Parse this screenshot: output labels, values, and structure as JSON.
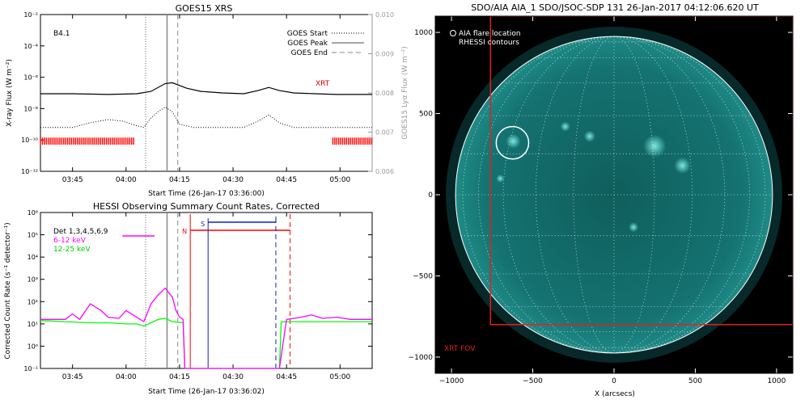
{
  "chart_data": [
    {
      "type": "line",
      "title": "GOES15 XRS",
      "xlabel": "Start Time (26-Jan-17 03:36:00)",
      "ylabel": "X-ray Flux (W m⁻²)",
      "y2label": "GOES15 Lyα Flux (W m⁻²)",
      "x_ticks": [
        "03:45",
        "04:00",
        "04:15",
        "04:30",
        "04:45",
        "05:00"
      ],
      "x_tick_minutes": [
        0,
        15,
        30,
        45,
        60,
        75
      ],
      "xlim_minutes": [
        -9,
        84
      ],
      "y_scale": "log",
      "y_ticks": [
        "10⁻²",
        "10⁻⁴",
        "10⁻⁶",
        "10⁻⁸",
        "10⁻¹⁰",
        "10⁻¹²"
      ],
      "y_tick_exp": [
        -2,
        -4,
        -6,
        -8,
        -10,
        -12
      ],
      "ylim_exp": [
        -12,
        -2
      ],
      "y2_ticks": [
        "0.010",
        "0.009",
        "0.008",
        "0.007",
        "0.006"
      ],
      "y2_values": [
        0.01,
        0.009,
        0.008,
        0.007,
        0.006
      ],
      "y2lim": [
        0.006,
        0.01
      ],
      "class_label": "B4.1",
      "xrt_label": "XRT",
      "legend": [
        {
          "label": "GOES Start",
          "style": "dotted"
        },
        {
          "label": "GOES Peak",
          "style": "solid"
        },
        {
          "label": "GOES End",
          "style": "dashed"
        }
      ],
      "legend_position": "top-right",
      "event_lines_minutes": {
        "start": 20.5,
        "peak": 26.5,
        "end": 29.5
      },
      "series": [
        {
          "name": "long channel",
          "color": "#000000",
          "x": [
            -9,
            0,
            10,
            18,
            22,
            26,
            28,
            32,
            36,
            42,
            48,
            52,
            55,
            58,
            62,
            68,
            74,
            80,
            84
          ],
          "log_y": [
            -7.05,
            -7.05,
            -7.1,
            -7.05,
            -6.9,
            -6.4,
            -6.35,
            -6.7,
            -6.9,
            -7.0,
            -7.05,
            -6.85,
            -6.65,
            -6.85,
            -7.0,
            -7.05,
            -7.1,
            -7.1,
            -7.1
          ]
        },
        {
          "name": "short channel",
          "color": "#000000",
          "style": "dotted",
          "x": [
            -9,
            0,
            5,
            10,
            14,
            18,
            20,
            22,
            24,
            26,
            28,
            30,
            34,
            40,
            48,
            52,
            55,
            58,
            62,
            70,
            84
          ],
          "log_y": [
            -9.2,
            -9.2,
            -8.9,
            -8.7,
            -8.8,
            -9.1,
            -9.2,
            -8.6,
            -8.2,
            -7.9,
            -8.2,
            -9.0,
            -9.2,
            -9.2,
            -9.2,
            -8.8,
            -8.4,
            -8.9,
            -9.2,
            -9.2,
            -9.2
          ]
        }
      ],
      "xrt_coverage_minutes": [
        [
          -9,
          17.5
        ],
        [
          73,
          84
        ]
      ]
    },
    {
      "type": "line",
      "title": "HESSI Observing Summary Count Rates, Corrected",
      "xlabel": "Start Time (26-Jan-17 03:36:02)",
      "ylabel": "Corrected Count Rate (s⁻¹ detector⁻¹)",
      "x_ticks": [
        "03:45",
        "04:00",
        "04:15",
        "04:30",
        "04:45",
        "05:00"
      ],
      "x_tick_minutes": [
        0,
        15,
        30,
        45,
        60,
        75
      ],
      "xlim_minutes": [
        -9,
        84
      ],
      "y_scale": "log",
      "y_ticks": [
        "10⁶",
        "10⁵",
        "10⁴",
        "10³",
        "10²",
        "10¹",
        "10⁰",
        "10⁻¹"
      ],
      "y_tick_exp": [
        6,
        5,
        4,
        3,
        2,
        1,
        0,
        -1
      ],
      "ylim_exp": [
        -1,
        6
      ],
      "legend": [
        {
          "label": "Det 1,3,4,5,6,9",
          "color": "#000000"
        },
        {
          "label": "6-12 keV",
          "color": "#ff00ff"
        },
        {
          "label": "12-25 keV",
          "color": "#00ff00"
        }
      ],
      "legend_position": "top-left",
      "event_lines_minutes": {
        "start": 20.5,
        "peak": 26.5,
        "end": 29.5
      },
      "marker_labels": {
        "night": "N",
        "saa": "S"
      },
      "night_interval_minutes": [
        33,
        61
      ],
      "night_x_minutes": [
        33,
        61
      ],
      "saa_interval_minutes": [
        38,
        57
      ],
      "series": [
        {
          "name": "6-12 keV",
          "color": "#ff00ff",
          "x": [
            -9,
            -2,
            0,
            2,
            5,
            8,
            10,
            13,
            15,
            18,
            20,
            22,
            24,
            26,
            28,
            29,
            30,
            31,
            31.5,
            58,
            60,
            62,
            64,
            67,
            70,
            74,
            78,
            84
          ],
          "log_y": [
            1.2,
            1.2,
            1.45,
            1.2,
            1.9,
            1.6,
            1.3,
            1.25,
            1.6,
            1.3,
            1.1,
            1.9,
            2.3,
            2.6,
            2.2,
            1.6,
            1.3,
            1.2,
            -1.0,
            -1.0,
            1.2,
            1.25,
            1.3,
            1.4,
            1.25,
            1.3,
            1.2,
            1.2
          ]
        },
        {
          "name": "12-25 keV",
          "color": "#00ff00",
          "x": [
            -9,
            -2,
            5,
            10,
            15,
            18,
            20,
            22,
            24,
            26,
            28,
            31,
            31.5,
            58,
            58.5,
            66,
            74,
            84
          ],
          "log_y": [
            1.15,
            1.1,
            1.05,
            1.05,
            1.0,
            1.0,
            0.9,
            1.05,
            1.2,
            1.25,
            1.1,
            1.05,
            -1.0,
            -1.0,
            1.1,
            1.1,
            1.1,
            1.1
          ]
        }
      ]
    },
    {
      "type": "image",
      "title": "SDO/AIA AIA_1 SDO/JSOC-SDP 131 26-Jan-2017 04:12:06.620 UT",
      "xlabel": "X (arcsecs)",
      "x_ticks": [
        "−1000",
        "−500",
        "0",
        "500",
        "1000"
      ],
      "x_tick_values": [
        -1000,
        -500,
        0,
        500,
        1000
      ],
      "y_ticks": [
        "1000",
        "500",
        "0",
        "−500",
        "−1000"
      ],
      "y_tick_values": [
        1000,
        500,
        0,
        -500,
        -1000
      ],
      "xlim": [
        -1100,
        1100
      ],
      "ylim": [
        -1100,
        1100
      ],
      "legend": [
        {
          "label": "AIA flare location",
          "symbol": "circle"
        },
        {
          "label": "RHESSI contours",
          "symbol": "none"
        }
      ],
      "fov_label": "XRT FOV",
      "fov_arcsec": {
        "x": [
          -760,
          1100
        ],
        "y": [
          -800,
          1100
        ]
      },
      "disk_radius_arcsec": 975,
      "flare_location_arcsec": {
        "x": -625,
        "y": 320,
        "r": 100
      },
      "colors": {
        "disk": "#1f8a86",
        "disk_bright": "#7ff0e6",
        "fov": "#e02020",
        "limb": "#ffffff"
      }
    }
  ],
  "colors": {
    "magenta": "#ff00ff",
    "green": "#00ff00",
    "red": "#ff0000",
    "blue": "#1020c0",
    "gray_axis": "#9a9a9a"
  }
}
